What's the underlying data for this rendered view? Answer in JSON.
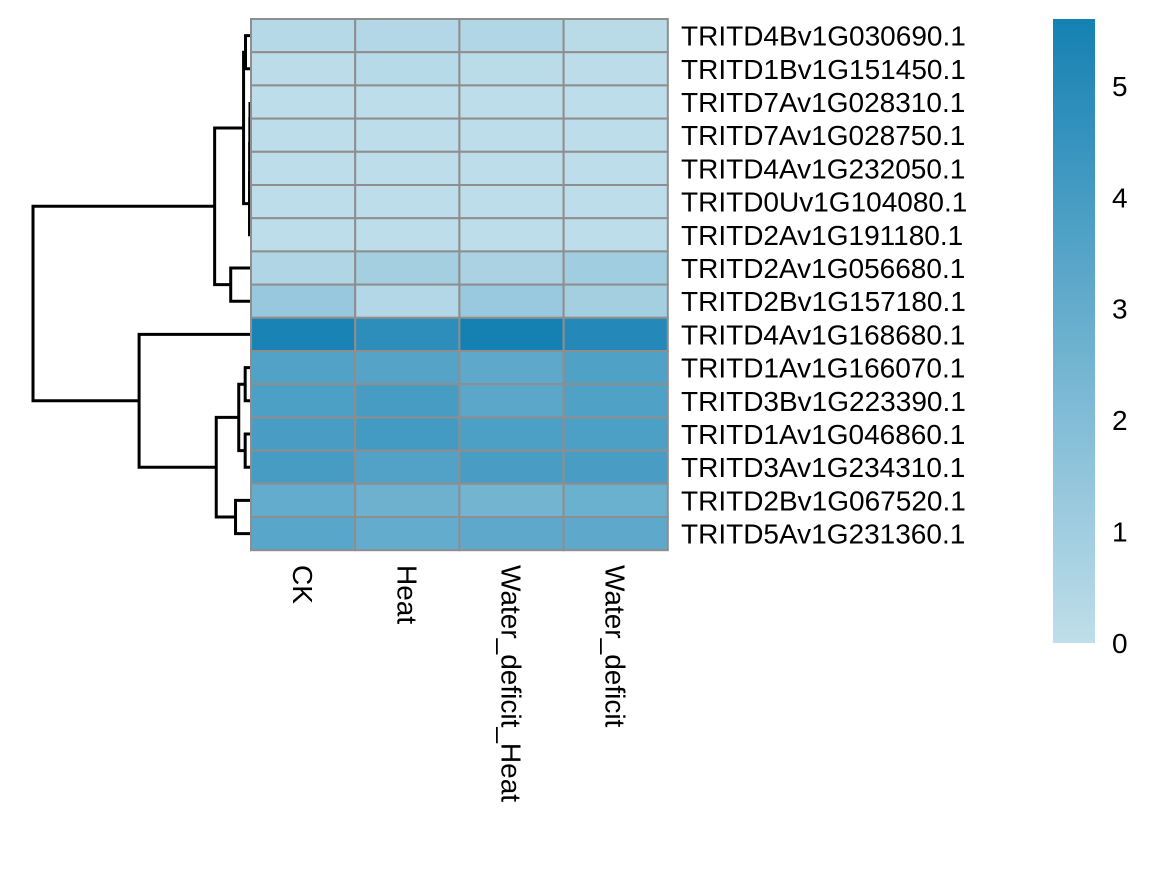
{
  "chart_data": {
    "type": "heatmap",
    "columns": [
      "CK",
      "Heat",
      "Water_deficit_Heat",
      "Water_deficit"
    ],
    "rows": [
      "TRITD4Bv1G030690.1",
      "TRITD1Bv1G151450.1",
      "TRITD7Av1G028310.1",
      "TRITD7Av1G028750.1",
      "TRITD4Av1G232050.1",
      "TRITD0Uv1G104080.1",
      "TRITD2Av1G191180.1",
      "TRITD2Av1G056680.1",
      "TRITD2Bv1G157180.1",
      "TRITD4Av1G168680.1",
      "TRITD1Av1G166070.1",
      "TRITD3Bv1G223390.1",
      "TRITD1Av1G046860.1",
      "TRITD3Av1G234310.1",
      "TRITD2Bv1G067520.1",
      "TRITD5Av1G231360.1"
    ],
    "values": [
      [
        0.3,
        0.4,
        0.45,
        0.2
      ],
      [
        0.1,
        0.25,
        0.15,
        0.1
      ],
      [
        0.05,
        0.05,
        0.05,
        0.05
      ],
      [
        0.05,
        0.05,
        0.05,
        0.05
      ],
      [
        0.05,
        0.05,
        0.05,
        0.05
      ],
      [
        0.05,
        0.05,
        0.05,
        0.05
      ],
      [
        0.05,
        0.05,
        0.05,
        0.05
      ],
      [
        0.5,
        0.9,
        0.7,
        1.0
      ],
      [
        1.3,
        0.4,
        1.25,
        0.9
      ],
      [
        5.5,
        4.8,
        5.6,
        5.1
      ],
      [
        3.6,
        3.5,
        3.2,
        3.7
      ],
      [
        3.8,
        4.0,
        3.3,
        3.7
      ],
      [
        3.9,
        4.1,
        3.8,
        3.8
      ],
      [
        4.0,
        3.6,
        3.9,
        3.9
      ],
      [
        3.0,
        2.7,
        2.5,
        2.8
      ],
      [
        3.4,
        3.0,
        3.2,
        3.2
      ]
    ],
    "color_scale": {
      "min": 0,
      "max": 5.6,
      "low_color": "#bfdeea",
      "high_color": "#1581b3",
      "ticks": [
        0,
        1,
        2,
        3,
        4,
        5
      ],
      "cell_border": "#8e8e8e"
    },
    "row_dendrogram": [
      [
        2,
        3,
        0.0
      ],
      [
        16,
        4,
        0.01
      ],
      [
        17,
        5,
        0.02
      ],
      [
        18,
        6,
        0.03
      ],
      [
        0,
        1,
        0.28
      ],
      [
        20,
        19,
        0.4
      ],
      [
        7,
        8,
        1.2
      ],
      [
        21,
        22,
        2.2
      ],
      [
        10,
        11,
        0.3
      ],
      [
        12,
        13,
        0.3
      ],
      [
        24,
        25,
        0.7
      ],
      [
        14,
        15,
        0.9
      ],
      [
        26,
        27,
        2.1
      ],
      [
        9,
        28,
        6.9
      ],
      [
        23,
        29,
        13.5
      ]
    ],
    "row_dendrogram_max_height": 13.5
  }
}
